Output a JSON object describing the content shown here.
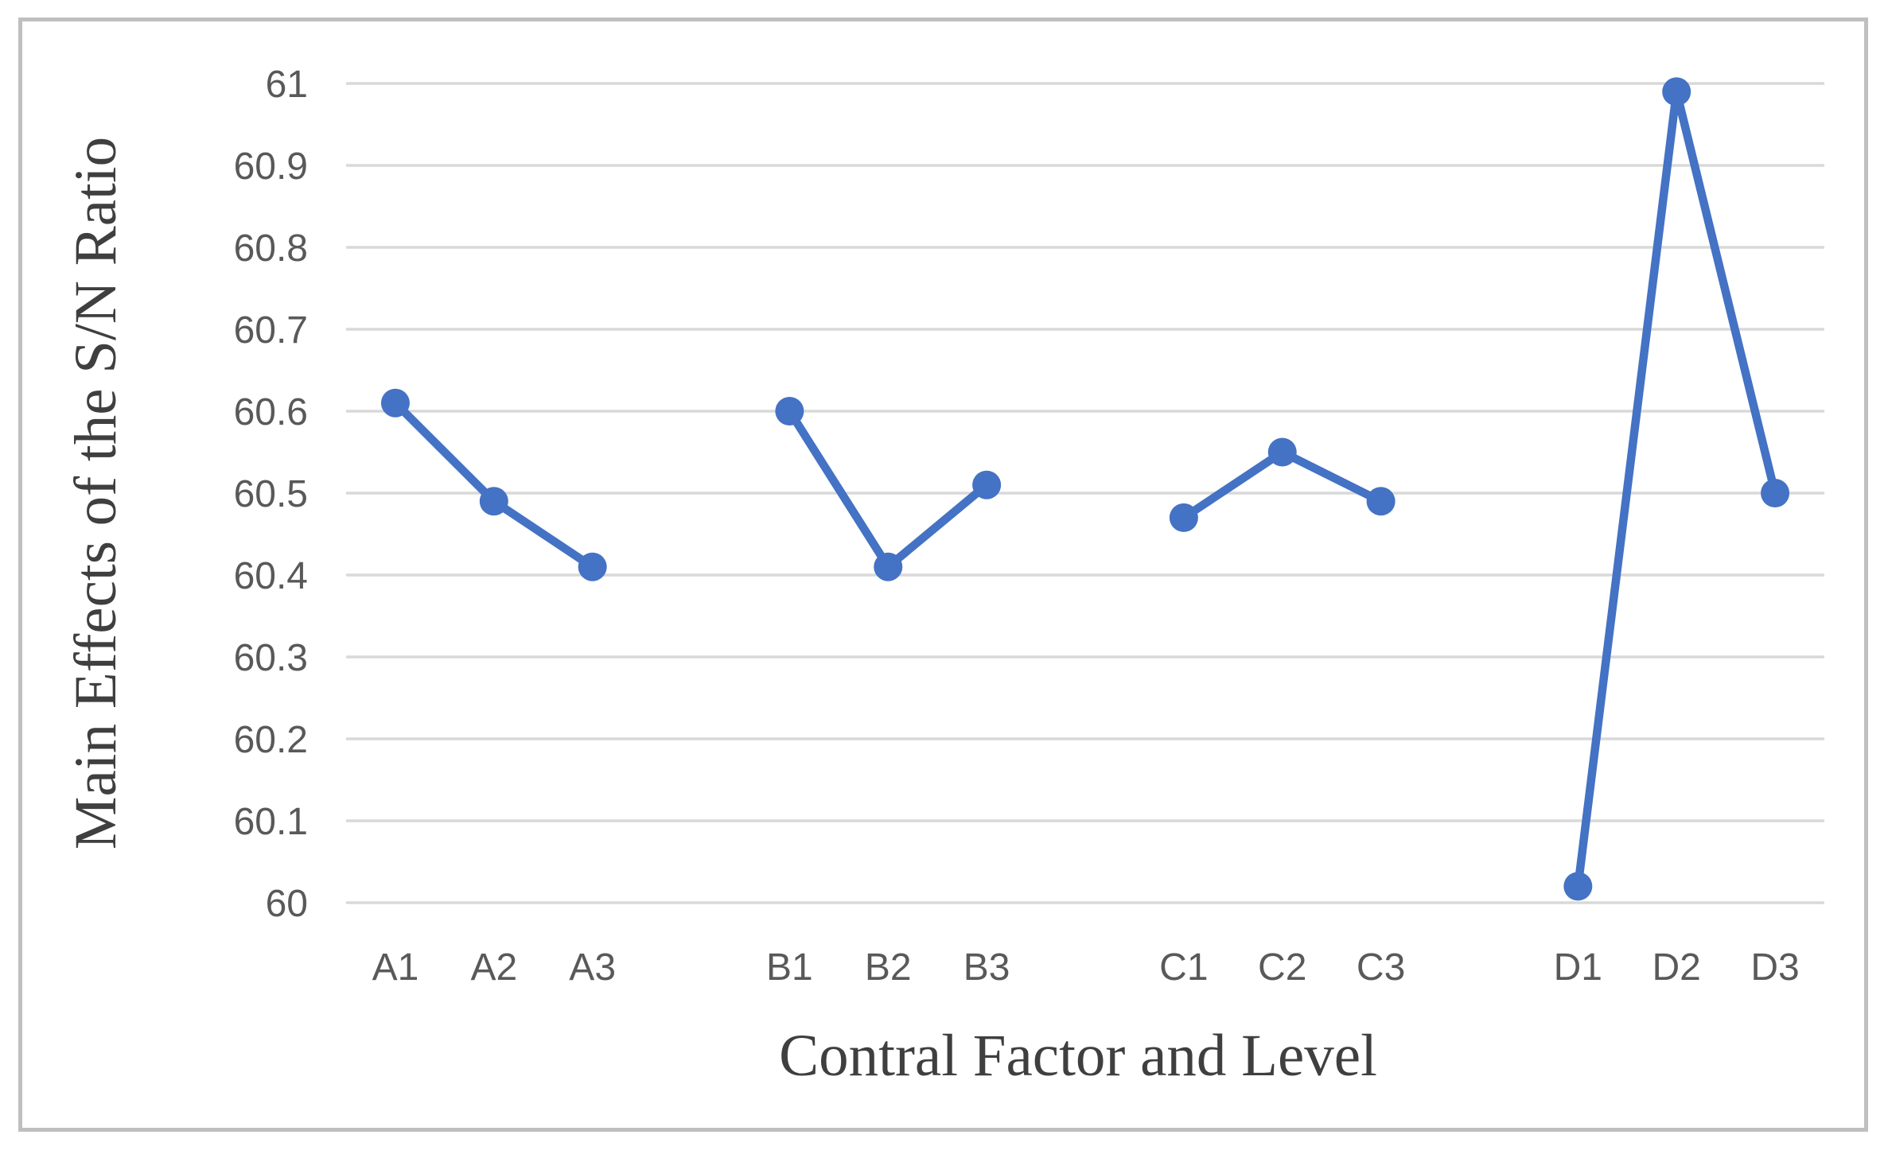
{
  "chart_data": {
    "type": "line",
    "title": "",
    "xlabel": "Contral Factor and Level",
    "ylabel": "Main Effects of the S/N Ratio",
    "ylim": [
      60,
      61
    ],
    "ytick_step": 0.1,
    "yticks": [
      "61",
      "60.9",
      "60.8",
      "60.7",
      "60.6",
      "60.5",
      "60.4",
      "60.3",
      "60.2",
      "60.1",
      "60"
    ],
    "grid": "horizontal",
    "legend": "none",
    "marker": "circle",
    "series": [
      {
        "name": "A",
        "categories": [
          "A1",
          "A2",
          "A3"
        ],
        "values": [
          60.61,
          60.49,
          60.41
        ]
      },
      {
        "name": "B",
        "categories": [
          "B1",
          "B2",
          "B3"
        ],
        "values": [
          60.6,
          60.41,
          60.51
        ]
      },
      {
        "name": "C",
        "categories": [
          "C1",
          "C2",
          "C3"
        ],
        "values": [
          60.47,
          60.55,
          60.49
        ]
      },
      {
        "name": "D",
        "categories": [
          "D1",
          "D2",
          "D3"
        ],
        "values": [
          60.02,
          60.99,
          60.5
        ]
      }
    ],
    "colors": {
      "line": "#4472C4",
      "gridline": "#D9D9D9",
      "tick_label": "#595959",
      "axis_title": "#3F3F3F",
      "frame_border": "#BFBFBF",
      "background": "#FFFFFF"
    }
  }
}
